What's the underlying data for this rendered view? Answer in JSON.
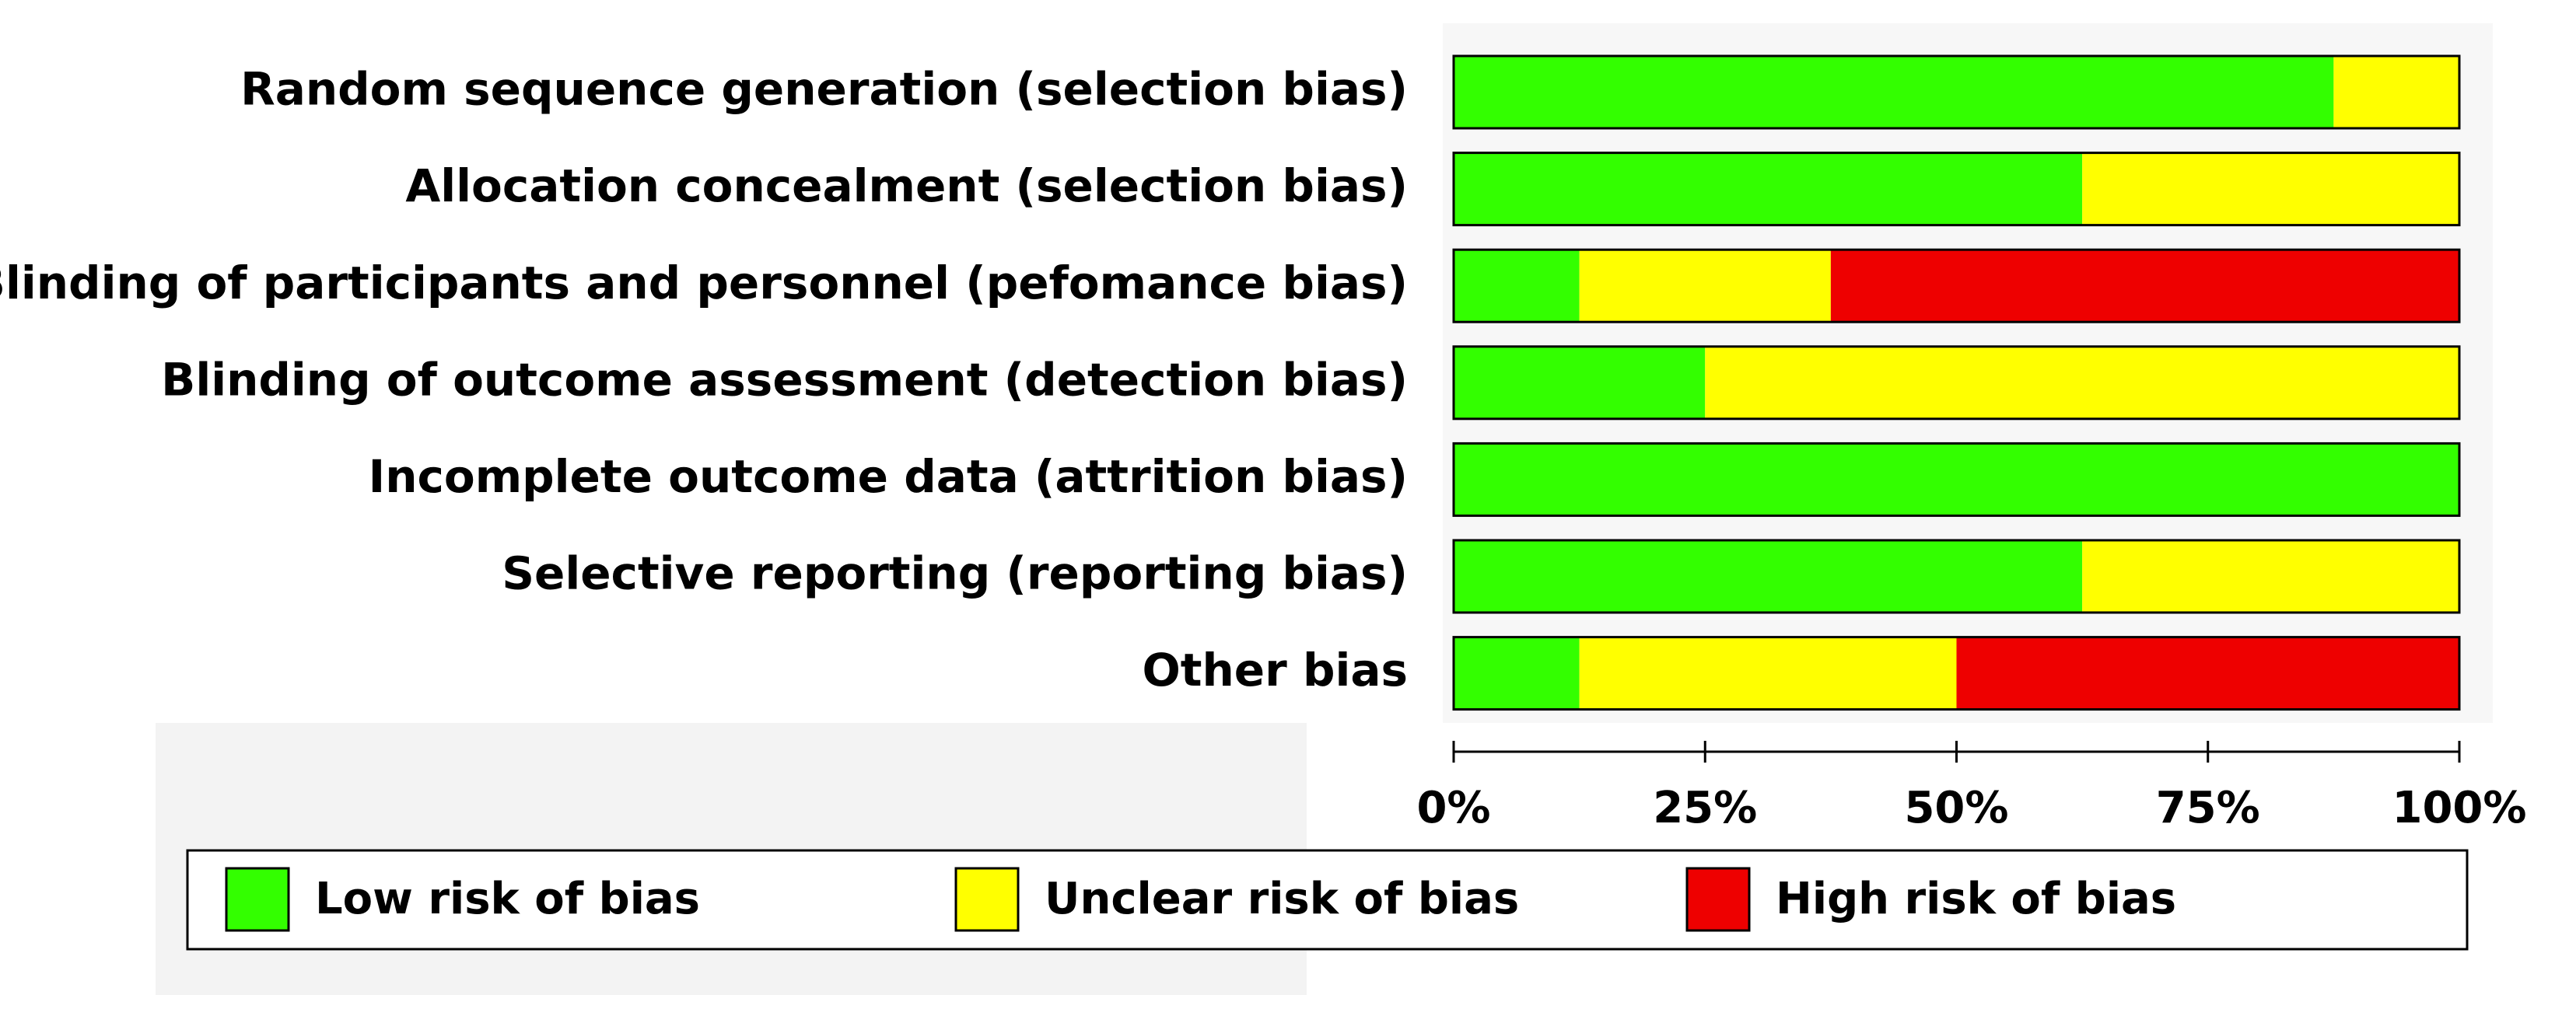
{
  "chart_data": {
    "type": "stacked-barh",
    "categories": [
      "Random sequence generation (selection bias)",
      "Allocation concealment (selection bias)",
      "Blinding of participants and personnel (pefomance bias)",
      "Blinding of outcome assessment (detection bias)",
      "Incomplete outcome data (attrition bias)",
      "Selective reporting (reporting bias)",
      "Other bias"
    ],
    "series": [
      {
        "name": "Low risk of bias",
        "color": "#33ff00",
        "values": [
          87.5,
          62.5,
          12.5,
          25,
          100,
          62.5,
          12.5
        ]
      },
      {
        "name": "Unclear risk of bias",
        "color": "#ffff00",
        "values": [
          12.5,
          37.5,
          25,
          75,
          0,
          37.5,
          37.5
        ]
      },
      {
        "name": "High risk of bias",
        "color": "#ee0000",
        "values": [
          0,
          0,
          62.5,
          0,
          0,
          0,
          50
        ]
      }
    ],
    "xlim": [
      0,
      100
    ],
    "xticks": [
      {
        "value": 0,
        "label": "0%"
      },
      {
        "value": 25,
        "label": "25%"
      },
      {
        "value": 50,
        "label": "50%"
      },
      {
        "value": 75,
        "label": "75%"
      },
      {
        "value": 100,
        "label": "100%"
      }
    ],
    "legend": "bottom"
  }
}
